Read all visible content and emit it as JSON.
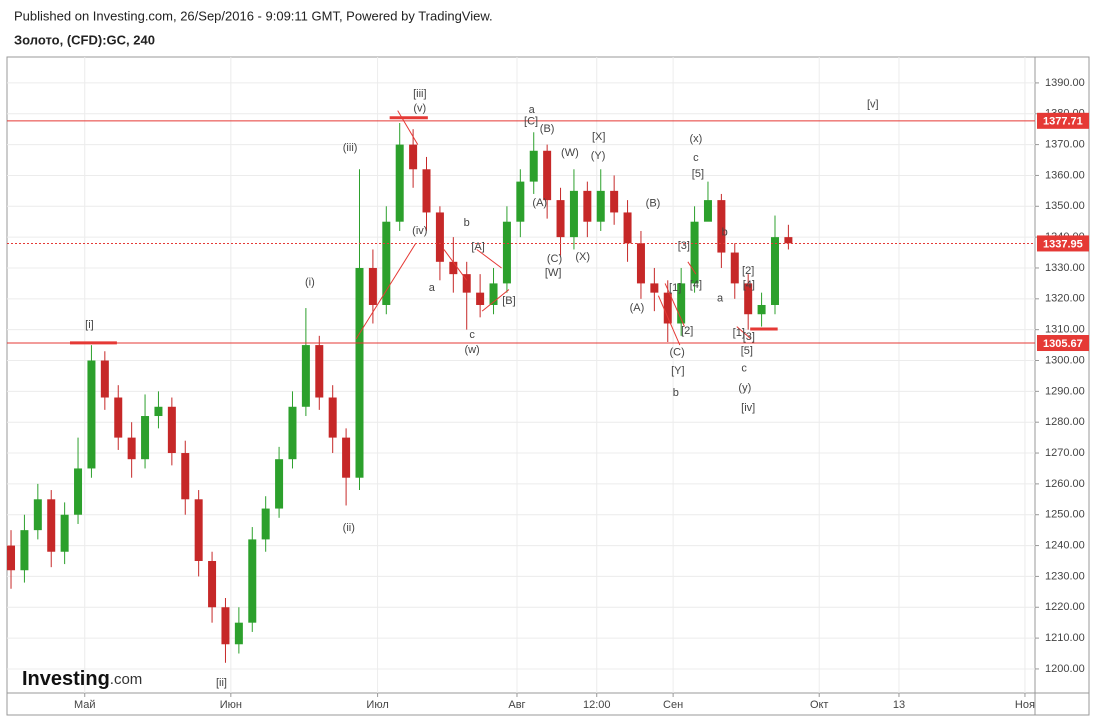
{
  "header": {
    "published": "Published on Investing.com, 26/Sep/2016 - 9:09:11 GMT, Powered by TradingView.",
    "symbol": "Золото, (CFD):GC, 240"
  },
  "logo": "Investing",
  "logo_suffix": ".com",
  "chart_data": {
    "type": "candlestick",
    "up_color": "#2ca02c",
    "down_color": "#c62828",
    "grid": true,
    "x": [
      -11,
      -9,
      -7,
      -5,
      -3,
      -1,
      1,
      3,
      5,
      7,
      9,
      11,
      13,
      15,
      17,
      19,
      21,
      23,
      25,
      27,
      29,
      31,
      33,
      35,
      37,
      39,
      41,
      43,
      45,
      47,
      49,
      51,
      53,
      55,
      57,
      59,
      61,
      63,
      65,
      67,
      69,
      71,
      73,
      75,
      77,
      79,
      81,
      83,
      85,
      87,
      89,
      91,
      93,
      95,
      97,
      99,
      101,
      103,
      105
    ],
    "open": [
      1240,
      1232,
      1245,
      1255,
      1238,
      1250,
      1265,
      1300,
      1288,
      1275,
      1268,
      1282,
      1285,
      1270,
      1255,
      1235,
      1220,
      1208,
      1215,
      1242,
      1252,
      1268,
      1285,
      1305,
      1288,
      1275,
      1262,
      1330,
      1318,
      1345,
      1370,
      1362,
      1348,
      1332,
      1328,
      1322,
      1318,
      1325,
      1345,
      1358,
      1368,
      1352,
      1340,
      1355,
      1345,
      1355,
      1348,
      1338,
      1325,
      1322,
      1312,
      1325,
      1345,
      1352,
      1335,
      1325,
      1315,
      1318,
      1340
    ],
    "high": [
      1245,
      1250,
      1260,
      1258,
      1254,
      1275,
      1305,
      1303,
      1292,
      1280,
      1289,
      1290,
      1288,
      1274,
      1258,
      1238,
      1223,
      1220,
      1246,
      1256,
      1272,
      1290,
      1317,
      1308,
      1292,
      1278,
      1362,
      1336,
      1350,
      1377,
      1375,
      1366,
      1350,
      1340,
      1332,
      1328,
      1330,
      1350,
      1362,
      1374,
      1370,
      1356,
      1362,
      1358,
      1362,
      1360,
      1352,
      1342,
      1330,
      1326,
      1330,
      1350,
      1358,
      1354,
      1338,
      1328,
      1322,
      1347,
      1344
    ],
    "low": [
      1226,
      1228,
      1242,
      1233,
      1234,
      1247,
      1262,
      1284,
      1271,
      1262,
      1265,
      1278,
      1266,
      1250,
      1230,
      1215,
      1202,
      1205,
      1212,
      1238,
      1249,
      1265,
      1282,
      1284,
      1270,
      1253,
      1258,
      1312,
      1315,
      1342,
      1356,
      1342,
      1326,
      1322,
      1310,
      1314,
      1315,
      1322,
      1340,
      1354,
      1346,
      1334,
      1336,
      1340,
      1342,
      1344,
      1332,
      1320,
      1316,
      1306,
      1308,
      1322,
      1346,
      1330,
      1320,
      1310,
      1311,
      1315,
      1336
    ],
    "close": [
      1232,
      1245,
      1255,
      1238,
      1250,
      1265,
      1300,
      1288,
      1275,
      1268,
      1282,
      1285,
      1270,
      1255,
      1235,
      1220,
      1208,
      1215,
      1242,
      1252,
      1268,
      1285,
      1305,
      1288,
      1275,
      1262,
      1330,
      1318,
      1345,
      1370,
      1362,
      1348,
      1332,
      1328,
      1322,
      1318,
      1325,
      1345,
      1358,
      1368,
      1352,
      1340,
      1355,
      1345,
      1355,
      1348,
      1338,
      1325,
      1322,
      1312,
      1325,
      1345,
      1352,
      1335,
      1325,
      1315,
      1318,
      1340,
      1338
    ],
    "xlim": [
      -11.6,
      141.8
    ],
    "xticks": [
      {
        "value": 0,
        "label": "Май"
      },
      {
        "value": 21.8,
        "label": "Июн"
      },
      {
        "value": 43.7,
        "label": "Июл"
      },
      {
        "value": 64.5,
        "label": "Авг"
      },
      {
        "value": 76.4,
        "label": "12:00"
      },
      {
        "value": 87.8,
        "label": "Сен"
      },
      {
        "value": 109.6,
        "label": "Окт"
      },
      {
        "value": 121.5,
        "label": "13"
      },
      {
        "value": 140.3,
        "label": "Ноя"
      }
    ],
    "ylim": [
      1192.2,
      1398.4
    ],
    "yticks": [
      {
        "value": 1200,
        "label": "1200.00"
      },
      {
        "value": 1210,
        "label": "1210.00"
      },
      {
        "value": 1220,
        "label": "1220.00"
      },
      {
        "value": 1230,
        "label": "1230.00"
      },
      {
        "value": 1240,
        "label": "1240.00"
      },
      {
        "value": 1250,
        "label": "1250.00"
      },
      {
        "value": 1260,
        "label": "1260.00"
      },
      {
        "value": 1270,
        "label": "1270.00"
      },
      {
        "value": 1280,
        "label": "1280.00"
      },
      {
        "value": 1290,
        "label": "1290.00"
      },
      {
        "value": 1300,
        "label": "1300.00"
      },
      {
        "value": 1310,
        "label": "1310.00"
      },
      {
        "value": 1320,
        "label": "1320.00"
      },
      {
        "value": 1330,
        "label": "1330.00"
      },
      {
        "value": 1340,
        "label": "1340.00"
      },
      {
        "value": 1350,
        "label": "1350.00"
      },
      {
        "value": 1360,
        "label": "1360.00"
      },
      {
        "value": 1370,
        "label": "1370.00"
      },
      {
        "value": 1380,
        "label": "1380.00"
      },
      {
        "value": 1390,
        "label": "1390.00"
      }
    ],
    "levels": [
      {
        "value": 1377.71,
        "dashed": false
      },
      {
        "value": 1337.95,
        "dashed": true
      },
      {
        "value": 1305.67,
        "dashed": false
      }
    ],
    "level_color": "#e53935",
    "markers": [
      [
        -2.2,
        1305.7,
        4.8,
        1305.7
      ],
      [
        45.5,
        1378.7,
        51.2,
        1378.7
      ],
      [
        99.3,
        1310.2,
        103.4,
        1310.2
      ]
    ],
    "trendlines": [
      [
        40.5,
        1307,
        49.4,
        1338
      ],
      [
        46.7,
        1381,
        49.7,
        1370
      ],
      [
        53.6,
        1336,
        57,
        1326
      ],
      [
        58.5,
        1336,
        62.2,
        1330
      ],
      [
        59.3,
        1316,
        63.3,
        1323
      ],
      [
        85.6,
        1321,
        88.8,
        1305
      ],
      [
        86.6,
        1325,
        89.5,
        1311
      ],
      [
        90,
        1332,
        91.2,
        1328
      ],
      [
        97.3,
        1311,
        99.4,
        1307
      ]
    ],
    "annotations": [
      {
        "text": "[i]",
        "x": 0.7,
        "y": 1311.5
      },
      {
        "text": "[ii]",
        "x": 20.4,
        "y": 1195.4
      },
      {
        "text": "(i)",
        "x": 33.6,
        "y": 1325.2
      },
      {
        "text": "(ii)",
        "x": 39.4,
        "y": 1245.7
      },
      {
        "text": "(iii)",
        "x": 39.6,
        "y": 1368.9
      },
      {
        "text": "[iii]",
        "x": 50,
        "y": 1386.4
      },
      {
        "text": "(v)",
        "x": 50,
        "y": 1381.6
      },
      {
        "text": "(iv)",
        "x": 50,
        "y": 1342
      },
      {
        "text": "a",
        "x": 51.8,
        "y": 1323.5
      },
      {
        "text": "b",
        "x": 57,
        "y": 1344.6
      },
      {
        "text": "c",
        "x": 57.8,
        "y": 1308.3
      },
      {
        "text": "(w)",
        "x": 57.8,
        "y": 1303.4
      },
      {
        "text": "[A]",
        "x": 58.7,
        "y": 1336.8
      },
      {
        "text": "[B]",
        "x": 63.3,
        "y": 1319.3
      },
      {
        "text": "a",
        "x": 66.7,
        "y": 1381.2
      },
      {
        "text": "[C]",
        "x": 66.6,
        "y": 1377.4
      },
      {
        "text": "(B)",
        "x": 69,
        "y": 1375.1
      },
      {
        "text": "(A)",
        "x": 67.9,
        "y": 1351.1
      },
      {
        "text": "(C)",
        "x": 70.1,
        "y": 1332.9
      },
      {
        "text": "[W]",
        "x": 69.9,
        "y": 1328.4
      },
      {
        "text": "(W)",
        "x": 72.4,
        "y": 1367.3
      },
      {
        "text": "[X]",
        "x": 76.7,
        "y": 1372.5
      },
      {
        "text": "(Y)",
        "x": 76.6,
        "y": 1366.3
      },
      {
        "text": "(X)",
        "x": 74.3,
        "y": 1333.6
      },
      {
        "text": "(B)",
        "x": 84.8,
        "y": 1350.8
      },
      {
        "text": "(A)",
        "x": 82.4,
        "y": 1317
      },
      {
        "text": "(C)",
        "x": 88.4,
        "y": 1302.5
      },
      {
        "text": "[Y]",
        "x": 88.5,
        "y": 1296.6
      },
      {
        "text": "b",
        "x": 88.2,
        "y": 1289.5
      },
      {
        "text": "[1]",
        "x": 88.1,
        "y": 1323.5
      },
      {
        "text": "[2]",
        "x": 89.9,
        "y": 1309.6
      },
      {
        "text": "[3]",
        "x": 89.4,
        "y": 1337.1
      },
      {
        "text": "[4]",
        "x": 91.2,
        "y": 1324.5
      },
      {
        "text": "(x)",
        "x": 91.2,
        "y": 1371.8
      },
      {
        "text": "c",
        "x": 91.2,
        "y": 1365.7
      },
      {
        "text": "[5]",
        "x": 91.5,
        "y": 1360.5
      },
      {
        "text": "b",
        "x": 95.5,
        "y": 1341.4
      },
      {
        "text": "a",
        "x": 94.8,
        "y": 1320
      },
      {
        "text": "[2]",
        "x": 99,
        "y": 1329
      },
      {
        "text": "[4]",
        "x": 99.1,
        "y": 1324.5
      },
      {
        "text": "[1]",
        "x": 97.6,
        "y": 1308.9
      },
      {
        "text": "[3]",
        "x": 99.1,
        "y": 1307.6
      },
      {
        "text": "[5]",
        "x": 98.8,
        "y": 1303.1
      },
      {
        "text": "c",
        "x": 98.4,
        "y": 1297.3
      },
      {
        "text": "(y)",
        "x": 98.5,
        "y": 1291.1
      },
      {
        "text": "[iv]",
        "x": 99,
        "y": 1284.6
      },
      {
        "text": "[v]",
        "x": 117.6,
        "y": 1382.9
      }
    ]
  }
}
